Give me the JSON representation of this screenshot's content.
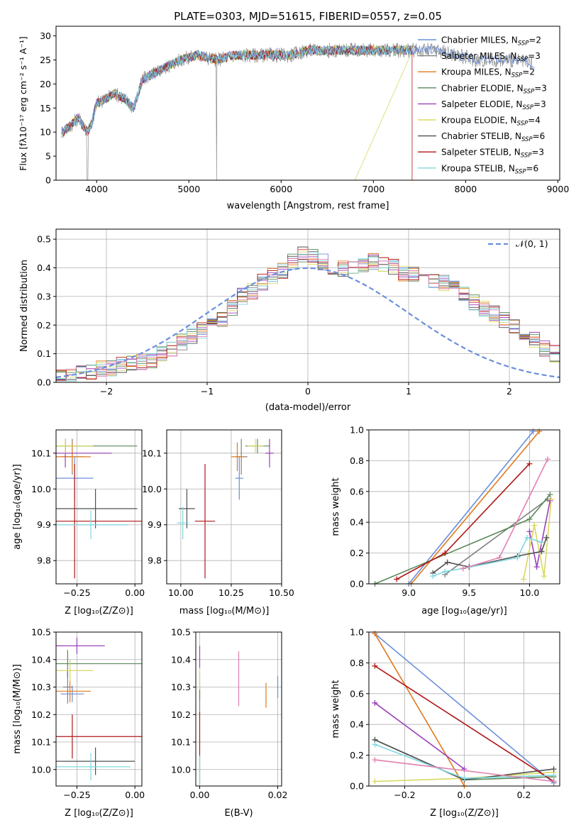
{
  "figure_title": "PLATE=0303, MJD=51615, FIBERID=0557, z=0.05",
  "model_colors": [
    "#6a8fdc",
    "#808080",
    "#e07b20",
    "#5a8a5a",
    "#9b40b8",
    "#d8d860",
    "#505050",
    "#b01818",
    "#7fd8e0"
  ],
  "chart_data": [
    {
      "id": "spectrum",
      "type": "line",
      "title": "PLATE=0303, MJD=51615, FIBERID=0557, z=0.05",
      "xlabel": "wavelength [Angstrom, rest frame]",
      "ylabel": "Flux [fλ10⁻¹⁷ erg cm⁻² s⁻¹ A⁻¹]",
      "xlim": [
        3560,
        9020
      ],
      "ylim": [
        0,
        32
      ],
      "xticks": [
        "4000",
        "5000",
        "6000",
        "7000",
        "8000",
        "9000"
      ],
      "yticks": [
        "0",
        "5",
        "10",
        "15",
        "20",
        "25",
        "30"
      ],
      "legend_position": "top-right",
      "legend": [
        {
          "label": "Chabrier MILES, N",
          "sub": "SSP",
          "suffix": "=2",
          "color": "#6a8fdc"
        },
        {
          "label": "Salpeter MILES, N",
          "sub": "SSP",
          "suffix": "=3",
          "color": "#808080"
        },
        {
          "label": "Kroupa MILES, N",
          "sub": "SSP",
          "suffix": "=2",
          "color": "#e07b20"
        },
        {
          "label": "Chabrier ELODIE, N",
          "sub": "SSP",
          "suffix": "=3",
          "color": "#5a8a5a"
        },
        {
          "label": "Salpeter ELODIE, N",
          "sub": "SSP",
          "suffix": "=3",
          "color": "#9b40b8"
        },
        {
          "label": "Kroupa ELODIE, N",
          "sub": "SSP",
          "suffix": "=4",
          "color": "#d8d860"
        },
        {
          "label": "Chabrier STELIB, N",
          "sub": "SSP",
          "suffix": "=6",
          "color": "#505050"
        },
        {
          "label": "Salpeter STELIB, N",
          "sub": "SSP",
          "suffix": "=3",
          "color": "#b01818"
        },
        {
          "label": "Kroupa STELIB, N",
          "sub": "SSP",
          "suffix": "=6",
          "color": "#7fd8e0"
        }
      ],
      "continuum_x": [
        3620,
        3700,
        3800,
        3900,
        3950,
        4000,
        4100,
        4200,
        4300,
        4400,
        4500,
        4700,
        4900,
        5100,
        5300,
        5500,
        5700,
        5900,
        6100,
        6300,
        6500,
        6700,
        6900,
        7100,
        7300,
        7500,
        7700,
        7900,
        8100,
        8300,
        8500,
        8750
      ],
      "continuum_y": [
        10,
        11,
        13,
        10,
        12,
        16,
        17,
        18,
        17,
        15,
        21,
        23,
        25,
        26,
        25,
        26,
        26,
        26,
        26,
        27,
        27,
        27,
        27,
        27,
        27,
        27,
        27,
        26,
        25,
        25,
        25,
        24
      ]
    },
    {
      "id": "residuals",
      "type": "histogram",
      "xlabel": "(data-model)/error",
      "ylabel": "Normed distribution",
      "xlim": [
        -2.5,
        2.5
      ],
      "ylim": [
        0,
        0.535
      ],
      "xticks": [
        "−2",
        "−1",
        "0",
        "1",
        "2"
      ],
      "yticks": [
        "0.0",
        "0.1",
        "0.2",
        "0.3",
        "0.4",
        "0.5"
      ],
      "grid": true,
      "legend_position": "top-right",
      "reference_curve": "𝒩(0, 1)",
      "bin_width": 0.1,
      "bin_start": -2.5,
      "mean_profile": [
        0.02,
        0.02,
        0.03,
        0.04,
        0.045,
        0.05,
        0.06,
        0.065,
        0.07,
        0.08,
        0.1,
        0.12,
        0.14,
        0.16,
        0.18,
        0.2,
        0.22,
        0.26,
        0.3,
        0.32,
        0.35,
        0.37,
        0.39,
        0.42,
        0.45,
        0.44,
        0.42,
        0.4,
        0.4,
        0.4,
        0.41,
        0.42,
        0.41,
        0.4,
        0.38,
        0.38,
        0.37,
        0.36,
        0.35,
        0.33,
        0.31,
        0.28,
        0.26,
        0.24,
        0.22,
        0.19,
        0.17,
        0.15,
        0.12,
        0.1,
        0.08,
        0.06,
        0.055,
        0.05,
        0.045,
        0.04,
        0.035,
        0.03,
        0.025,
        0.02
      ]
    },
    {
      "id": "age-vs-Z",
      "type": "errorbar",
      "xlabel": "Z [log₁₀(Z/Z⊙)]",
      "ylabel": "age  [log₁₀(age/yr)]",
      "xlim": [
        -0.34,
        0.03
      ],
      "ylim": [
        9.735,
        10.165
      ],
      "xticks": [
        "−0.25",
        "0.00"
      ],
      "yticks": [
        "9.8",
        "9.9",
        "10.0",
        "10.1"
      ],
      "grid": true,
      "points": [
        {
          "x": -0.26,
          "y": 10.03,
          "xerr": 0.08,
          "yerr": 0.06,
          "c": 0
        },
        {
          "x": -0.27,
          "y": 10.09,
          "xerr": 0.05,
          "yerr": 0.05,
          "c": 1
        },
        {
          "x": -0.27,
          "y": 10.09,
          "xerr": 0.08,
          "yerr": 0.04,
          "c": 2
        },
        {
          "x": -0.3,
          "y": 10.12,
          "xerr": 0.31,
          "yerr": 0.02,
          "c": 3
        },
        {
          "x": -0.3,
          "y": 10.1,
          "xerr": 0.2,
          "yerr": 0.04,
          "c": 4
        },
        {
          "x": -0.3,
          "y": 10.12,
          "xerr": 0.12,
          "yerr": 0.02,
          "c": 5
        },
        {
          "x": -0.17,
          "y": 9.945,
          "xerr": 0.18,
          "yerr": 0.055,
          "c": 6
        },
        {
          "x": -0.26,
          "y": 9.91,
          "xerr": 0.35,
          "yerr": 0.16,
          "c": 7
        },
        {
          "x": -0.19,
          "y": 9.9,
          "xerr": 0.16,
          "yerr": 0.04,
          "c": 8
        }
      ]
    },
    {
      "id": "age-vs-mass",
      "type": "errorbar",
      "xlabel": "mass [log₁₀(M/M⊙)]",
      "ylabel": "",
      "xlim": [
        9.93,
        10.5
      ],
      "ylim": [
        9.735,
        10.165
      ],
      "xticks": [
        "10.00",
        "10.25",
        "10.50"
      ],
      "yticks": [
        "9.8",
        "9.9",
        "10.0",
        "10.1"
      ],
      "grid": true,
      "points": [
        {
          "x": 10.29,
          "y": 10.03,
          "xerr": 0.02,
          "yerr": 0.06,
          "c": 0
        },
        {
          "x": 10.3,
          "y": 10.09,
          "xerr": 0.03,
          "yerr": 0.05,
          "c": 1
        },
        {
          "x": 10.28,
          "y": 10.09,
          "xerr": 0.03,
          "yerr": 0.04,
          "c": 2
        },
        {
          "x": 10.38,
          "y": 10.12,
          "xerr": 0.06,
          "yerr": 0.02,
          "c": 3
        },
        {
          "x": 10.44,
          "y": 10.1,
          "xerr": 0.02,
          "yerr": 0.04,
          "c": 4
        },
        {
          "x": 10.37,
          "y": 10.12,
          "xerr": 0.04,
          "yerr": 0.02,
          "c": 5
        },
        {
          "x": 10.03,
          "y": 9.945,
          "xerr": 0.04,
          "yerr": 0.055,
          "c": 6
        },
        {
          "x": 10.12,
          "y": 9.91,
          "xerr": 0.05,
          "yerr": 0.16,
          "c": 7
        },
        {
          "x": 10.01,
          "y": 9.905,
          "xerr": 0.03,
          "yerr": 0.045,
          "c": 8
        }
      ]
    },
    {
      "id": "weight-vs-age",
      "type": "line",
      "xlabel": "age  [log₁₀(age/yr)]",
      "ylabel": "mass weight",
      "xlim": [
        8.67,
        10.25
      ],
      "ylim": [
        0,
        1.0
      ],
      "xticks": [
        "9.0",
        "9.5",
        "10.0"
      ],
      "yticks": [
        "0.0",
        "0.2",
        "0.4",
        "0.6",
        "0.8",
        "1.0"
      ],
      "grid": true,
      "series": [
        {
          "c": 0,
          "x": [
            9.0,
            10.03
          ],
          "y": [
            0.0,
            0.99
          ]
        },
        {
          "c": 1,
          "x": [
            9.3,
            10.15
          ],
          "y": [
            0.06,
            0.55
          ]
        },
        {
          "c": 2,
          "x": [
            9.02,
            10.08
          ],
          "y": [
            0.0,
            0.99
          ]
        },
        {
          "c": 3,
          "x": [
            8.72,
            10.0,
            10.17
          ],
          "y": [
            0.0,
            0.42,
            0.58
          ]
        },
        {
          "c": 4,
          "x": [
            10.0,
            10.06,
            10.17
          ],
          "y": [
            0.34,
            0.11,
            0.54
          ]
        },
        {
          "c": 5,
          "x": [
            9.95,
            10.04,
            10.12,
            10.18
          ],
          "y": [
            0.03,
            0.38,
            0.05,
            0.55
          ]
        },
        {
          "c": 6,
          "x": [
            9.2,
            9.32,
            9.5,
            9.9,
            10.1,
            10.14
          ],
          "y": [
            0.07,
            0.14,
            0.11,
            0.18,
            0.21,
            0.3
          ]
        },
        {
          "c": 7,
          "x": [
            8.9,
            9.3,
            10.0
          ],
          "y": [
            0.03,
            0.2,
            0.78
          ]
        },
        {
          "c": 8,
          "x": [
            9.2,
            9.3,
            9.45,
            9.9,
            9.98,
            10.1
          ],
          "y": [
            0.05,
            0.08,
            0.1,
            0.17,
            0.3,
            0.27
          ]
        },
        {
          "c": 9,
          "x": [
            9.45,
            9.75,
            10.15
          ],
          "y": [
            0.1,
            0.17,
            0.81
          ]
        }
      ]
    },
    {
      "id": "mass-vs-Z",
      "type": "errorbar",
      "xlabel": "Z [log₁₀(Z/Z⊙)]",
      "ylabel": "mass [log₁₀(M/M⊙)]",
      "xlim": [
        -0.34,
        0.03
      ],
      "ylim": [
        9.94,
        10.5
      ],
      "xticks": [
        "−0.25",
        "0.00"
      ],
      "yticks": [
        "10.0",
        "10.1",
        "10.2",
        "10.3",
        "10.4",
        "10.5"
      ],
      "grid": true,
      "points": [
        {
          "x": -0.27,
          "y": 10.275,
          "xerr": 0.05,
          "yerr": 0.03,
          "c": 0
        },
        {
          "x": -0.29,
          "y": 10.3,
          "xerr": 0.02,
          "yerr": 0.06,
          "c": 1
        },
        {
          "x": -0.28,
          "y": 10.285,
          "xerr": 0.09,
          "yerr": 0.04,
          "c": 2
        },
        {
          "x": -0.29,
          "y": 10.385,
          "xerr": 0.32,
          "yerr": 0.05,
          "c": 3
        },
        {
          "x": -0.25,
          "y": 10.45,
          "xerr": 0.12,
          "yerr": 0.03,
          "c": 4
        },
        {
          "x": -0.28,
          "y": 10.36,
          "xerr": 0.1,
          "yerr": 0.04,
          "c": 5
        },
        {
          "x": -0.17,
          "y": 10.03,
          "xerr": 0.17,
          "yerr": 0.05,
          "c": 6
        },
        {
          "x": -0.27,
          "y": 10.12,
          "xerr": 0.3,
          "yerr": 0.08,
          "c": 7
        },
        {
          "x": -0.19,
          "y": 10.01,
          "xerr": 0.17,
          "yerr": 0.05,
          "c": 8
        }
      ]
    },
    {
      "id": "mass-vs-ebv",
      "type": "errorbar",
      "xlabel": "E(B-V)",
      "ylabel": "",
      "xlim": [
        -0.001,
        0.021
      ],
      "ylim": [
        9.94,
        10.5
      ],
      "xticks": [
        "0.00",
        "0.02"
      ],
      "yticks": [
        "10.0",
        "10.1",
        "10.2",
        "10.3",
        "10.4",
        "10.5"
      ],
      "grid": true,
      "points": [
        {
          "x": 0.02,
          "y": 10.3,
          "xerr": 0,
          "yerr": 0.04,
          "c": 0
        },
        {
          "x": 0.0,
          "y": 10.25,
          "xerr": 0,
          "yerr": 0.05,
          "c": 1
        },
        {
          "x": 0.017,
          "y": 10.27,
          "xerr": 0,
          "yerr": 0.045,
          "c": 2
        },
        {
          "x": 0.0,
          "y": 10.3,
          "xerr": 0,
          "yerr": 0.05,
          "c": 3
        },
        {
          "x": 0.0,
          "y": 10.41,
          "xerr": 0,
          "yerr": 0.04,
          "c": 4
        },
        {
          "x": 0.0,
          "y": 10.33,
          "xerr": 0,
          "yerr": 0.04,
          "c": 5
        },
        {
          "x": 0.0,
          "y": 10.0,
          "xerr": 0,
          "yerr": 0.05,
          "c": 6
        },
        {
          "x": 0.0,
          "y": 10.13,
          "xerr": 0,
          "yerr": 0.08,
          "c": 7
        },
        {
          "x": 0.0,
          "y": 10.0,
          "xerr": 0,
          "yerr": 0.05,
          "c": 8
        },
        {
          "x": 0.01,
          "y": 10.33,
          "xerr": 0,
          "yerr": 0.1,
          "c": 9
        }
      ]
    },
    {
      "id": "weight-vs-Z",
      "type": "line",
      "xlabel": "Z [log₁₀(Z/Z⊙)]",
      "ylabel": "mass weight",
      "xlim": [
        -0.32,
        0.32
      ],
      "ylim": [
        0,
        1.0
      ],
      "xticks": [
        "−0.2",
        "0.0",
        "0.2"
      ],
      "yticks": [
        "0.0",
        "0.2",
        "0.4",
        "0.6",
        "0.8",
        "1.0"
      ],
      "grid": true,
      "series": [
        {
          "c": 0,
          "x": [
            -0.3,
            0.3
          ],
          "y": [
            0.99,
            0.02
          ]
        },
        {
          "c": 2,
          "x": [
            -0.3,
            0.0
          ],
          "y": [
            0.99,
            0.0
          ]
        },
        {
          "c": 3,
          "x": [
            -0.3,
            0.0,
            0.3
          ],
          "y": [
            0.3,
            0.04,
            0.06
          ]
        },
        {
          "c": 4,
          "x": [
            -0.3,
            0.0
          ],
          "y": [
            0.54,
            0.11
          ]
        },
        {
          "c": 5,
          "x": [
            -0.3,
            0.0,
            0.3
          ],
          "y": [
            0.03,
            0.05,
            0.09
          ]
        },
        {
          "c": 6,
          "x": [
            -0.3,
            0.0,
            0.3
          ],
          "y": [
            0.3,
            0.04,
            0.11
          ]
        },
        {
          "c": 7,
          "x": [
            -0.3,
            0.3
          ],
          "y": [
            0.78,
            0.03
          ]
        },
        {
          "c": 8,
          "x": [
            -0.3,
            0.0,
            0.3
          ],
          "y": [
            0.27,
            0.05,
            0.07
          ]
        },
        {
          "c": 9,
          "x": [
            -0.3,
            0.3
          ],
          "y": [
            0.17,
            0.03
          ]
        }
      ]
    }
  ]
}
